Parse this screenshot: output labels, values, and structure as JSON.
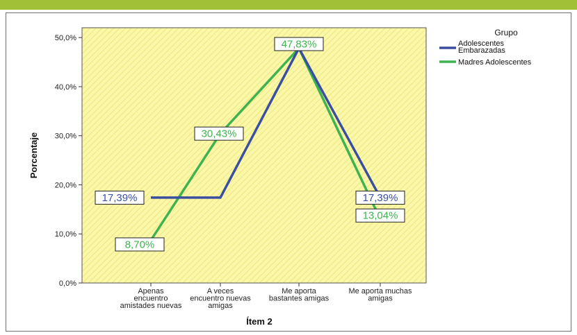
{
  "chart_data": {
    "type": "line",
    "categories": [
      [
        "Apenas",
        "encuentro",
        "amistades nuevas"
      ],
      [
        "A veces",
        "encuentro nuevas",
        "amigas"
      ],
      [
        "Me aporta",
        "bastantes amigas"
      ],
      [
        "Me aporta muchas",
        "amigas"
      ]
    ],
    "xlabel": "Ítem 2",
    "ylabel": "Porcentaje",
    "ylim": [
      0,
      52
    ],
    "yticks": [
      0,
      10,
      20,
      30,
      40,
      50
    ],
    "ytick_labels": [
      "0,0%",
      "10,0%",
      "20,0%",
      "30,0%",
      "40,0%",
      "50,0%"
    ],
    "legend": {
      "title": "Grupo",
      "position": "right"
    },
    "series": [
      {
        "name": [
          "Adolescentes",
          "Embarazadas"
        ],
        "color": "#3b4fa0",
        "values": [
          17.39,
          17.39,
          47.83,
          17.39
        ],
        "labels": [
          "17,39%",
          "",
          "",
          "17,39%"
        ]
      },
      {
        "name": [
          "Madres Adolescentes"
        ],
        "color": "#3fb34f",
        "values": [
          8.7,
          30.43,
          47.83,
          13.04
        ],
        "labels": [
          "8,70%",
          "30,43%",
          "47,83%",
          "13,04%"
        ]
      }
    ],
    "plot_background": "#fbf7a8",
    "hatch_color": "#e9de6e",
    "grid": false
  }
}
